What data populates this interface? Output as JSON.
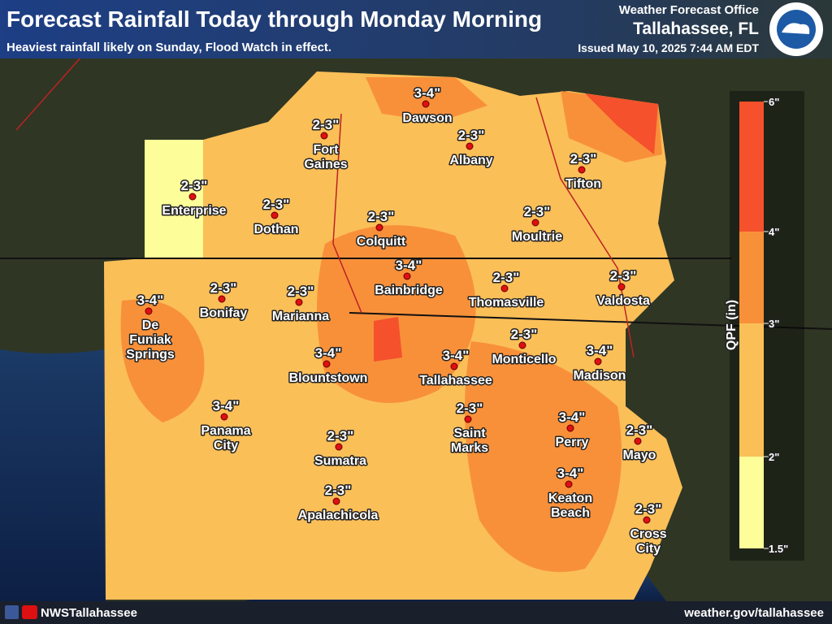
{
  "header": {
    "title": "Forecast Rainfall Today through Monday Morning",
    "subtitle": "Heaviest rainfall likely on Sunday, Flood Watch in effect.",
    "office": "Weather Forecast Office",
    "location": "Tallahassee, FL",
    "issued": "Issued May 10, 2025 7:44 AM EDT"
  },
  "legend": {
    "title": "QPF (in)",
    "ticks": [
      "6\"",
      "4\"",
      "3\"",
      "2\"",
      "1.5\""
    ],
    "colors": [
      "#f4512c",
      "#f8903a",
      "#fbbf58",
      "#fdfd99"
    ]
  },
  "cities": [
    {
      "name": [
        "Dawson"
      ],
      "amount": "3-4\""
    },
    {
      "name": [
        "Fort",
        "Gaines"
      ],
      "amount": "2-3\""
    },
    {
      "name": [
        "Albany"
      ],
      "amount": "2-3\""
    },
    {
      "name": [
        "Enterprise"
      ],
      "amount": "2-3\""
    },
    {
      "name": [
        "Dothan"
      ],
      "amount": "2-3\""
    },
    {
      "name": [
        "Tifton"
      ],
      "amount": "2-3\""
    },
    {
      "name": [
        "Colquitt"
      ],
      "amount": "2-3\""
    },
    {
      "name": [
        "Moultrie"
      ],
      "amount": "2-3\""
    },
    {
      "name": [
        "Bainbridge"
      ],
      "amount": "3-4\""
    },
    {
      "name": [
        "Thomasville"
      ],
      "amount": "2-3\""
    },
    {
      "name": [
        "Valdosta"
      ],
      "amount": "2-3\""
    },
    {
      "name": [
        "De",
        "Funiak",
        "Springs"
      ],
      "amount": "3-4\""
    },
    {
      "name": [
        "Bonifay"
      ],
      "amount": "2-3\""
    },
    {
      "name": [
        "Marianna"
      ],
      "amount": "2-3\""
    },
    {
      "name": [
        "Monticello"
      ],
      "amount": "2-3\""
    },
    {
      "name": [
        "Madison"
      ],
      "amount": "3-4\""
    },
    {
      "name": [
        "Blountstown"
      ],
      "amount": "3-4\""
    },
    {
      "name": [
        "Tallahassee"
      ],
      "amount": "3-4\""
    },
    {
      "name": [
        "Panama",
        "City"
      ],
      "amount": "3-4\""
    },
    {
      "name": [
        "Saint",
        "Marks"
      ],
      "amount": "2-3\""
    },
    {
      "name": [
        "Perry"
      ],
      "amount": "3-4\""
    },
    {
      "name": [
        "Mayo"
      ],
      "amount": "2-3\""
    },
    {
      "name": [
        "Sumatra"
      ],
      "amount": "2-3\""
    },
    {
      "name": [
        "Keaton",
        "Beach"
      ],
      "amount": "3-4\""
    },
    {
      "name": [
        "Apalachicola"
      ],
      "amount": "2-3\""
    },
    {
      "name": [
        "Cross",
        "City"
      ],
      "amount": "2-3\""
    }
  ],
  "footer": {
    "social": "NWSTallahassee",
    "website": "weather.gov/tallahassee"
  }
}
